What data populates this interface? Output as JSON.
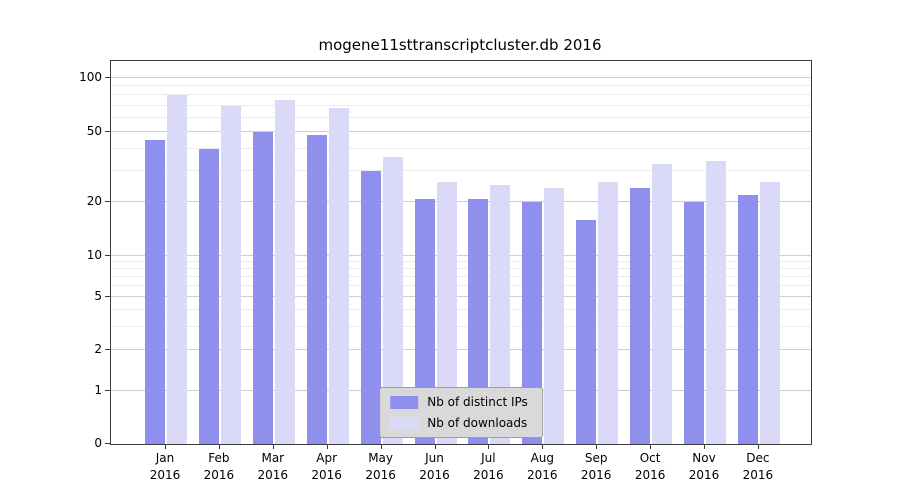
{
  "chart_data": {
    "type": "bar",
    "title": "mogene11sttranscriptcluster.db 2016",
    "categories": [
      "Jan 2016",
      "Feb 2016",
      "Mar 2016",
      "Apr 2016",
      "May 2016",
      "Jun 2016",
      "Jul 2016",
      "Aug 2016",
      "Sep 2016",
      "Oct 2016",
      "Nov 2016",
      "Dec 2016"
    ],
    "series": [
      {
        "name": "Nb of distinct IPs",
        "color": "#8f8fee",
        "values": [
          45,
          40,
          50,
          48,
          30,
          21,
          21,
          20,
          16,
          24,
          20,
          22
        ]
      },
      {
        "name": "Nb of downloads",
        "color": "#dadaf8",
        "values": [
          80,
          70,
          75,
          68,
          36,
          26,
          25,
          24,
          26,
          33,
          34,
          26
        ]
      }
    ],
    "yscale": "symlog",
    "yticks": [
      0,
      1,
      2,
      5,
      10,
      20,
      50,
      100
    ],
    "minor_yticks": [
      3,
      4,
      6,
      7,
      8,
      9,
      30,
      40,
      60,
      70,
      80,
      90
    ],
    "ylim": [
      0,
      130
    ],
    "grid": "on",
    "legend_position": "lower center"
  }
}
